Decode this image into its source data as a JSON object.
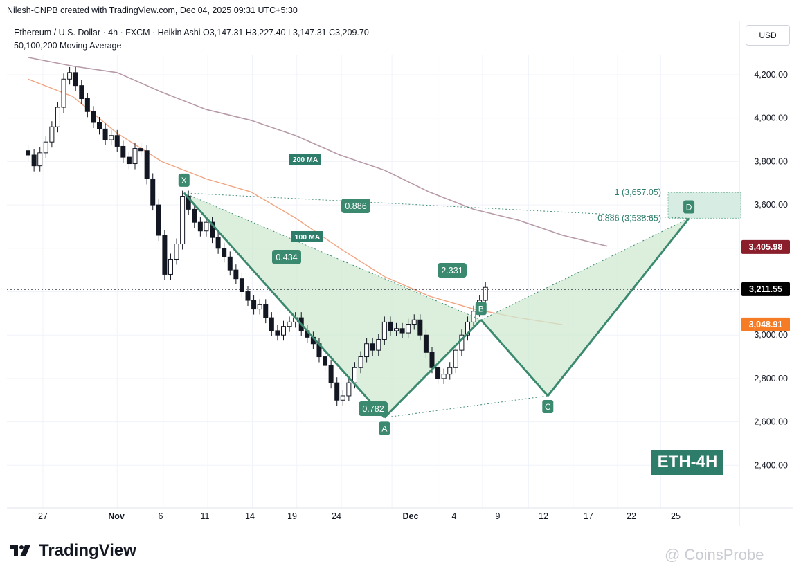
{
  "header": {
    "created_by": "Nilesh-CNPB created with TradingView.com, Dec 04, 2025 09:31 UTC+5:30"
  },
  "symbol_info": {
    "line": "Ethereum / U.S. Dollar · 4h · FXCM · Heikin Ashi  O3,147.31  H3,227.40  L3,147.31  C3,209.70",
    "indicator": "50,100,200 Moving Average"
  },
  "currency_button": "USD",
  "badge": "ETH-4H",
  "footer": {
    "logo_text": "TradingView",
    "watermark": "CoinsProbe"
  },
  "colors": {
    "pattern_green": "#3b8a6f",
    "pattern_fill": "#cfead0",
    "candle_up": "#2e6e57",
    "ma_100": "#f0a582",
    "ma_200": "#b79aa8",
    "last_price_bg": "#000000",
    "ma200_price_bg": "#8a1e2b",
    "ma100_price_bg": "#f57c25"
  },
  "chart_data": {
    "type": "candlestick",
    "x_ticks": [
      "27",
      "Nov",
      "6",
      "11",
      "14",
      "19",
      "24",
      "Dec",
      "4",
      "9",
      "12",
      "17",
      "22",
      "25"
    ],
    "y_ticks": [
      "4,200.00",
      "4,000.00",
      "3,800.00",
      "3,600.00",
      "3,000.00",
      "2,800.00",
      "2,600.00",
      "2,400.00"
    ],
    "ylim": [
      2300,
      4380
    ],
    "price_labels": [
      {
        "value": 3405.98,
        "text": "3,405.98"
      },
      {
        "value": 3211.55,
        "text": "3,211.55"
      },
      {
        "value": 3048.91,
        "text": "3,048.91"
      }
    ],
    "ma_labels": {
      "ma200": "200 MA",
      "ma100": "100 MA"
    },
    "pattern": {
      "points": [
        {
          "label": "X",
          "day": 9.5,
          "price": 3655
        },
        {
          "label": "A",
          "day": 23.0,
          "price": 2620
        },
        {
          "label": "B",
          "day": 29.5,
          "price": 3070
        },
        {
          "label": "C",
          "day": 34.0,
          "price": 2720
        },
        {
          "label": "D",
          "day": 43.5,
          "price": 3538
        }
      ],
      "ratios": [
        "0.886",
        "0.434",
        "0.782",
        "2.331"
      ]
    },
    "target_zone": {
      "upper": {
        "value": 3657.05,
        "text": "1 (3,657.05)"
      },
      "lower": {
        "value": 3538.65,
        "text": "0.886 (3,538.65)"
      }
    },
    "ma200": [
      [
        -1,
        4280
      ],
      [
        2,
        4240
      ],
      [
        5,
        4210
      ],
      [
        8,
        4120
      ],
      [
        11,
        4040
      ],
      [
        14,
        3990
      ],
      [
        17,
        3920
      ],
      [
        20,
        3830
      ],
      [
        23,
        3760
      ],
      [
        26,
        3660
      ],
      [
        29,
        3580
      ],
      [
        32,
        3530
      ],
      [
        35,
        3460
      ],
      [
        38,
        3410
      ]
    ],
    "ma100": [
      [
        -1,
        4180
      ],
      [
        2,
        4100
      ],
      [
        5,
        3930
      ],
      [
        8,
        3800
      ],
      [
        11,
        3720
      ],
      [
        14,
        3660
      ],
      [
        17,
        3540
      ],
      [
        20,
        3400
      ],
      [
        23,
        3270
      ],
      [
        26,
        3180
      ],
      [
        29,
        3120
      ],
      [
        32,
        3080
      ],
      [
        35,
        3048
      ]
    ],
    "candles": [
      [
        -1.0,
        3850,
        3830
      ],
      [
        -0.6,
        3830,
        3780
      ],
      [
        -0.2,
        3780,
        3840
      ],
      [
        0.2,
        3840,
        3890
      ],
      [
        0.6,
        3890,
        3960
      ],
      [
        1.0,
        3960,
        4050
      ],
      [
        1.4,
        4050,
        4180
      ],
      [
        1.8,
        4180,
        4210
      ],
      [
        2.2,
        4210,
        4150
      ],
      [
        2.6,
        4150,
        4090
      ],
      [
        3.0,
        4090,
        4030
      ],
      [
        3.4,
        4030,
        3980
      ],
      [
        3.8,
        3980,
        3950
      ],
      [
        4.2,
        3950,
        3900
      ],
      [
        4.6,
        3900,
        3920
      ],
      [
        5.0,
        3920,
        3870
      ],
      [
        5.4,
        3870,
        3820
      ],
      [
        5.8,
        3820,
        3790
      ],
      [
        6.2,
        3790,
        3860
      ],
      [
        6.6,
        3860,
        3850
      ],
      [
        7.0,
        3850,
        3720
      ],
      [
        7.4,
        3720,
        3600
      ],
      [
        7.8,
        3600,
        3460
      ],
      [
        8.2,
        3460,
        3280
      ],
      [
        8.6,
        3280,
        3350
      ],
      [
        9.0,
        3350,
        3420
      ],
      [
        9.4,
        3420,
        3640
      ],
      [
        9.8,
        3640,
        3580
      ],
      [
        10.2,
        3580,
        3520
      ],
      [
        10.6,
        3520,
        3480
      ],
      [
        11.0,
        3480,
        3520
      ],
      [
        11.4,
        3520,
        3450
      ],
      [
        11.8,
        3450,
        3400
      ],
      [
        12.2,
        3400,
        3360
      ],
      [
        12.6,
        3360,
        3300
      ],
      [
        13.0,
        3300,
        3260
      ],
      [
        13.4,
        3260,
        3200
      ],
      [
        13.8,
        3200,
        3160
      ],
      [
        14.2,
        3160,
        3120
      ],
      [
        14.6,
        3120,
        3140
      ],
      [
        15.0,
        3140,
        3080
      ],
      [
        15.4,
        3080,
        3020
      ],
      [
        15.8,
        3020,
        3000
      ],
      [
        16.2,
        3000,
        3040
      ],
      [
        16.6,
        3040,
        3060
      ],
      [
        17.0,
        3060,
        3080
      ],
      [
        17.4,
        3080,
        3020
      ],
      [
        17.8,
        3020,
        2990
      ],
      [
        18.2,
        2990,
        2960
      ],
      [
        18.6,
        2960,
        2900
      ],
      [
        19.0,
        2900,
        2860
      ],
      [
        19.4,
        2860,
        2780
      ],
      [
        19.8,
        2780,
        2700
      ],
      [
        20.2,
        2700,
        2720
      ],
      [
        20.6,
        2720,
        2780
      ],
      [
        21.0,
        2780,
        2850
      ],
      [
        21.4,
        2850,
        2900
      ],
      [
        21.8,
        2900,
        2960
      ],
      [
        22.2,
        2960,
        2930
      ],
      [
        22.6,
        2930,
        2980
      ],
      [
        23.0,
        2980,
        3060
      ],
      [
        23.4,
        3060,
        3020
      ],
      [
        23.8,
        3020,
        3030
      ],
      [
        24.2,
        3030,
        3010
      ],
      [
        24.6,
        3010,
        3050
      ],
      [
        25.0,
        3050,
        3070
      ],
      [
        25.4,
        3070,
        3000
      ],
      [
        25.8,
        3000,
        2920
      ],
      [
        26.2,
        2920,
        2850
      ],
      [
        26.6,
        2850,
        2800
      ],
      [
        27.0,
        2800,
        2820
      ],
      [
        27.4,
        2820,
        2850
      ],
      [
        27.8,
        2850,
        2930
      ],
      [
        28.2,
        2930,
        3000
      ],
      [
        28.6,
        3000,
        3060
      ],
      [
        29.0,
        3060,
        3110
      ],
      [
        29.4,
        3110,
        3160
      ],
      [
        29.8,
        3160,
        3220
      ]
    ]
  }
}
